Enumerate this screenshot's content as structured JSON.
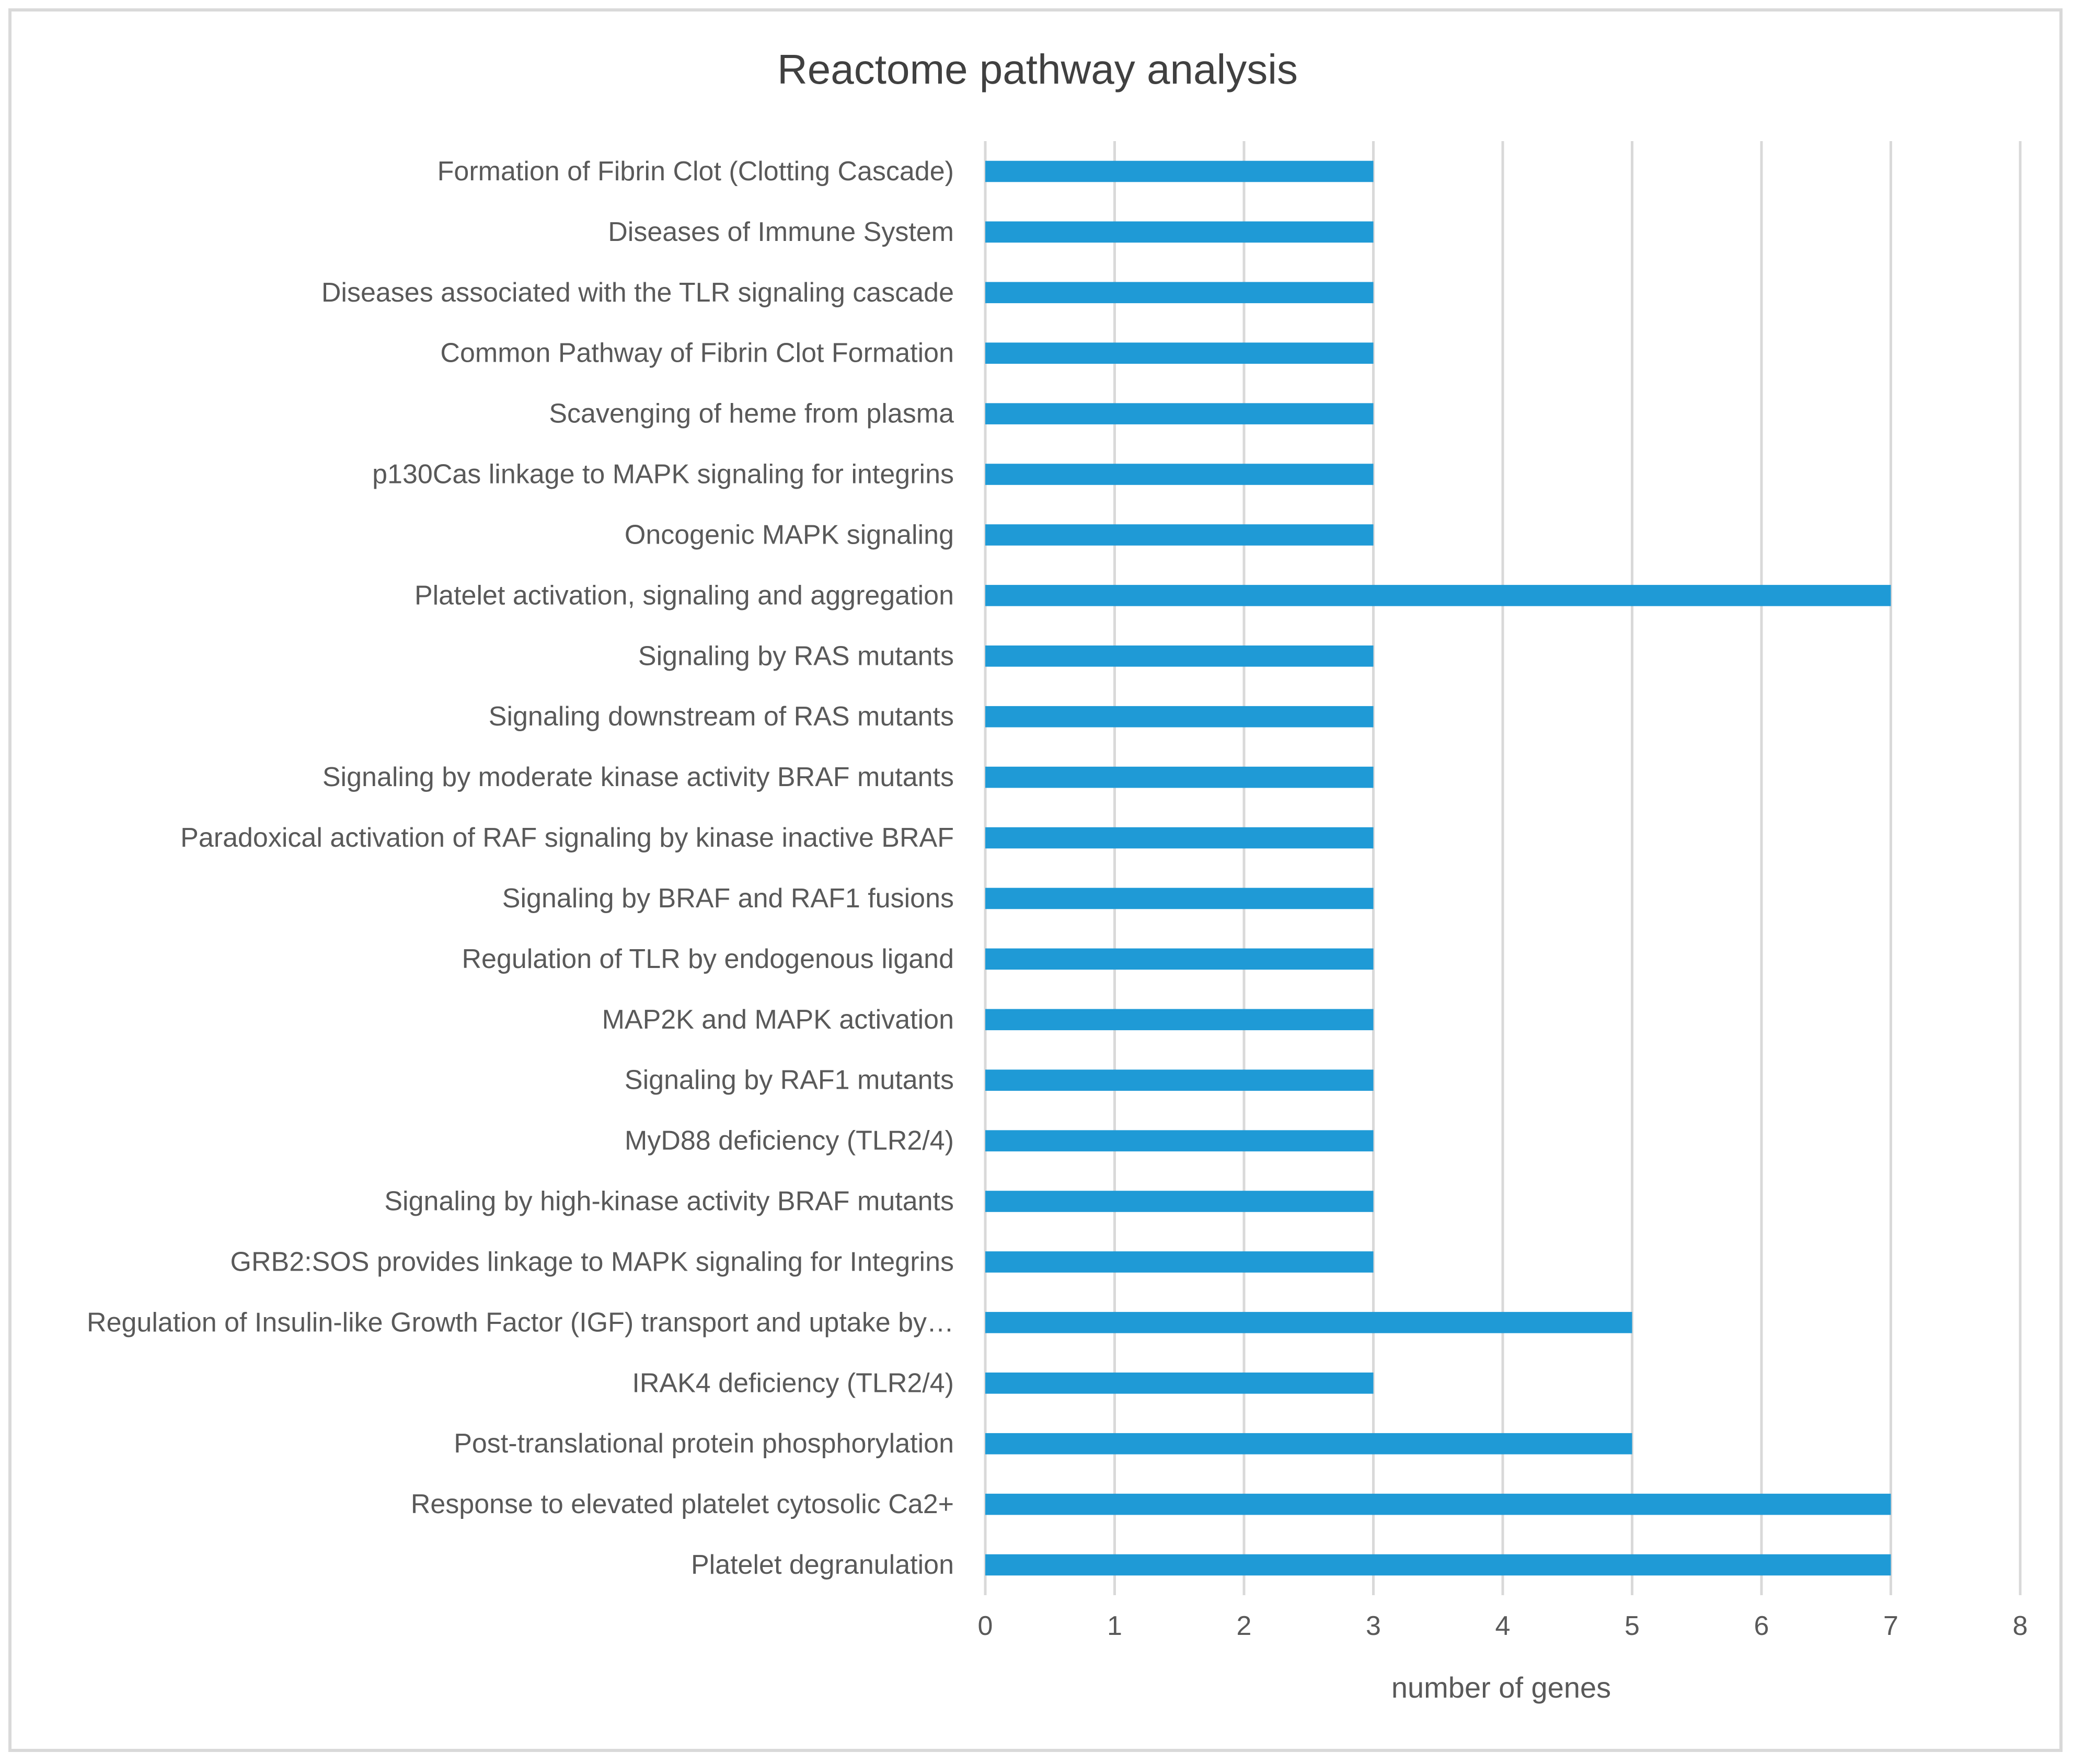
{
  "chart_data": {
    "type": "bar",
    "orientation": "horizontal",
    "title": "Reactome pathway analysis",
    "xlabel": "number of genes",
    "ylabel": "",
    "xlim": [
      0,
      8
    ],
    "xticks": [
      0,
      1,
      2,
      3,
      4,
      5,
      6,
      7,
      8
    ],
    "grid": "vertical",
    "legend": "none",
    "color": "#1f9ad6",
    "categories": [
      "Formation of Fibrin Clot (Clotting Cascade)",
      "Diseases of Immune System",
      "Diseases associated with the TLR signaling cascade",
      "Common Pathway of Fibrin Clot Formation",
      "Scavenging of heme from plasma",
      "p130Cas linkage to MAPK signaling for integrins",
      "Oncogenic MAPK signaling",
      "Platelet activation, signaling and aggregation",
      "Signaling by RAS mutants",
      "Signaling downstream of RAS mutants",
      "Signaling by moderate kinase activity BRAF mutants",
      "Paradoxical activation of RAF signaling by kinase inactive BRAF",
      "Signaling by BRAF and RAF1 fusions",
      "Regulation of TLR by endogenous ligand",
      "MAP2K and MAPK activation",
      "Signaling by RAF1 mutants",
      "MyD88 deficiency (TLR2/4)",
      "Signaling by high-kinase activity BRAF mutants",
      "GRB2:SOS provides linkage to MAPK signaling for Integrins",
      "Regulation of Insulin-like Growth Factor (IGF) transport and uptake by…",
      "IRAK4 deficiency (TLR2/4)",
      "Post-translational protein phosphorylation",
      "Response to elevated platelet cytosolic Ca2+",
      "Platelet degranulation"
    ],
    "values": [
      3,
      3,
      3,
      3,
      3,
      3,
      3,
      7,
      3,
      3,
      3,
      3,
      3,
      3,
      3,
      3,
      3,
      3,
      3,
      5,
      3,
      5,
      7,
      7
    ]
  }
}
